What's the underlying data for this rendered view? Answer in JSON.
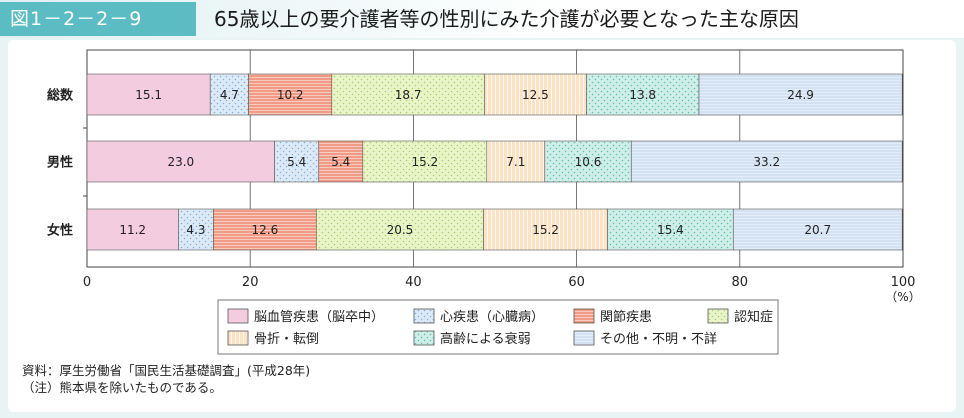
{
  "header": {
    "figure_label": "図1－2－2－9",
    "title": "65歳以上の要介護者等の性別にみた介護が必要となった主な原因"
  },
  "chart_data": {
    "type": "bar",
    "orientation": "horizontal",
    "stacked": true,
    "categories": [
      "総数",
      "男性",
      "女性"
    ],
    "series": [
      {
        "name": "脳血管疾患（脳卒中）",
        "values": [
          15.1,
          23.0,
          11.2
        ],
        "color": "#f4cce0",
        "pattern": "solid"
      },
      {
        "name": "心疾患（心臓病）",
        "values": [
          4.7,
          5.4,
          4.3
        ],
        "color": "#dceaf8",
        "pattern": "dots-blue"
      },
      {
        "name": "関節疾患",
        "values": [
          10.2,
          5.4,
          12.6
        ],
        "color": "#f19a85",
        "pattern": "hlines-white"
      },
      {
        "name": "認知症",
        "values": [
          18.7,
          15.2,
          20.5
        ],
        "color": "#e9f5c8",
        "pattern": "dots-green"
      },
      {
        "name": "骨折・転倒",
        "values": [
          12.5,
          7.1,
          15.2
        ],
        "color": "#fde2c4",
        "pattern": "vlines-white"
      },
      {
        "name": "高齢による衰弱",
        "values": [
          13.8,
          10.6,
          15.4
        ],
        "color": "#cfeee8",
        "pattern": "dots-teal"
      },
      {
        "name": "その他・不明・不詳",
        "values": [
          24.9,
          33.2,
          20.7
        ],
        "color": "#d3e2f3",
        "pattern": "hlines-light"
      }
    ],
    "value_labels": [
      [
        "15.1",
        "4.7",
        "10.2",
        "18.7",
        "12.5",
        "13.8",
        "24.9"
      ],
      [
        "23.0",
        "5.4",
        "5.4",
        "15.2",
        "7.1",
        "10.6",
        "33.2"
      ],
      [
        "11.2",
        "4.3",
        "12.6",
        "20.5",
        "15.2",
        "15.4",
        "20.7"
      ]
    ],
    "xlim": [
      0,
      100
    ],
    "x_ticks": [
      "0",
      "20",
      "40",
      "60",
      "80",
      "100"
    ],
    "x_unit": "（%）",
    "legend_placement": "bottom",
    "grid": true
  },
  "notes": {
    "source": "資料：厚生労働省「国民生活基礎調査」(平成28年)",
    "note": "（注）熊本県を除いたものである。"
  }
}
